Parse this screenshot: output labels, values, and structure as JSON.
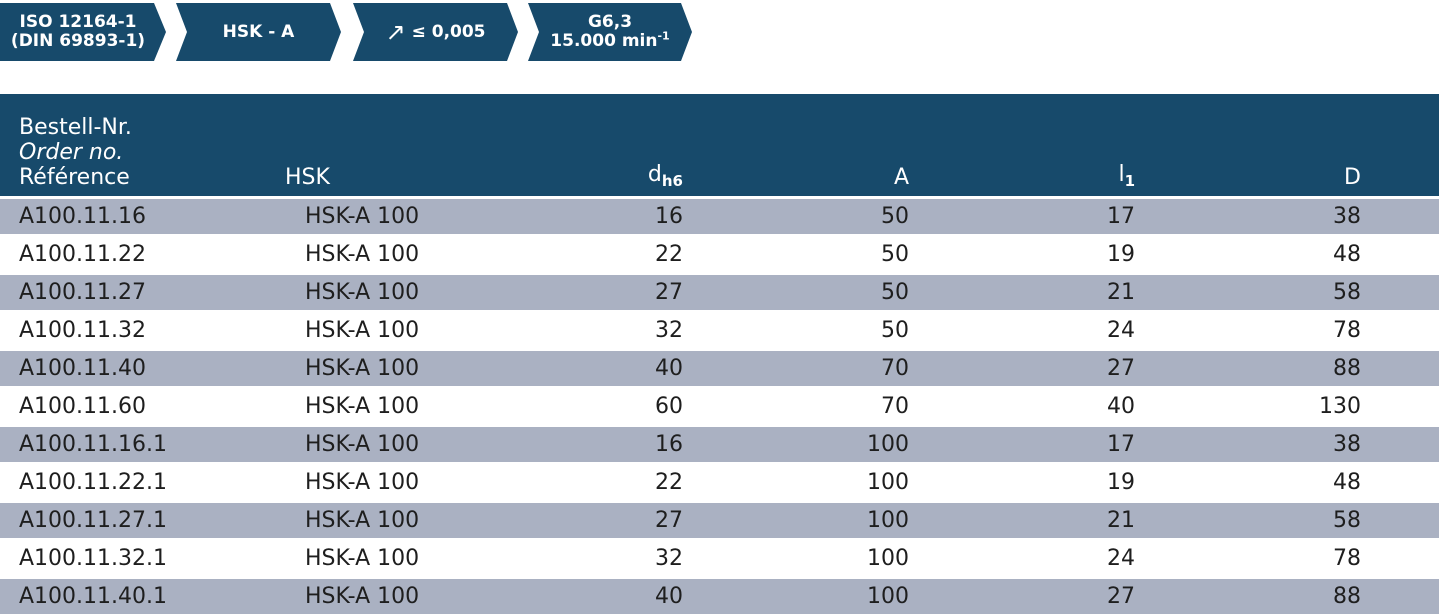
{
  "badges": {
    "iso_line1": "ISO 12164-1",
    "iso_line2": "(DIN 69893-1)",
    "hsk": "HSK - A",
    "runout_icon": "arrow-up-right-icon",
    "runout": "≤ 0,005",
    "balance_line1": "G6,3",
    "balance_speed": "15.000 min",
    "balance_exp": "-1"
  },
  "colors": {
    "header_bg": "#174a6b",
    "row_alt_bg": "#aab1c2"
  },
  "table": {
    "headers": {
      "ref_de": "Bestell-Nr.",
      "ref_en": "Order no.",
      "ref_fr": "Référence",
      "hsk": "HSK",
      "d_main": "d",
      "d_sub": "h6",
      "a": "A",
      "l_main": "l",
      "l_sub": "1",
      "d2": "D"
    },
    "rows": [
      {
        "ref": "A100.11.16",
        "hsk": "HSK-A 100",
        "d": "16",
        "a": "50",
        "l1": "17",
        "D": "38"
      },
      {
        "ref": "A100.11.22",
        "hsk": "HSK-A 100",
        "d": "22",
        "a": "50",
        "l1": "19",
        "D": "48"
      },
      {
        "ref": "A100.11.27",
        "hsk": "HSK-A 100",
        "d": "27",
        "a": "50",
        "l1": "21",
        "D": "58"
      },
      {
        "ref": "A100.11.32",
        "hsk": "HSK-A 100",
        "d": "32",
        "a": "50",
        "l1": "24",
        "D": "78"
      },
      {
        "ref": "A100.11.40",
        "hsk": "HSK-A 100",
        "d": "40",
        "a": "70",
        "l1": "27",
        "D": "88"
      },
      {
        "ref": "A100.11.60",
        "hsk": "HSK-A 100",
        "d": "60",
        "a": "70",
        "l1": "40",
        "D": "130"
      },
      {
        "ref": "A100.11.16.1",
        "hsk": "HSK-A 100",
        "d": "16",
        "a": "100",
        "l1": "17",
        "D": "38"
      },
      {
        "ref": "A100.11.22.1",
        "hsk": "HSK-A 100",
        "d": "22",
        "a": "100",
        "l1": "19",
        "D": "48"
      },
      {
        "ref": "A100.11.27.1",
        "hsk": "HSK-A 100",
        "d": "27",
        "a": "100",
        "l1": "21",
        "D": "58"
      },
      {
        "ref": "A100.11.32.1",
        "hsk": "HSK-A 100",
        "d": "32",
        "a": "100",
        "l1": "24",
        "D": "78"
      },
      {
        "ref": "A100.11.40.1",
        "hsk": "HSK-A 100",
        "d": "40",
        "a": "100",
        "l1": "27",
        "D": "88"
      }
    ]
  }
}
